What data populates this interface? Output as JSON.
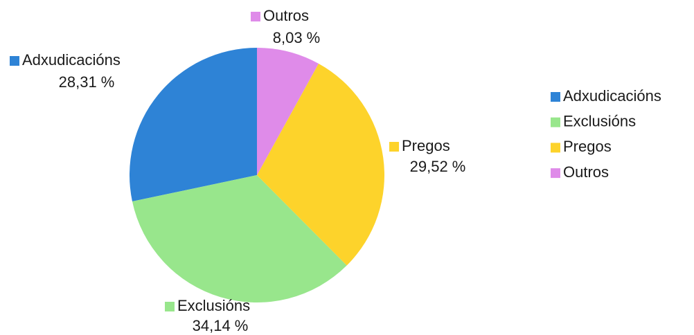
{
  "chart_data": {
    "type": "pie",
    "categories": [
      "Adxudicacións",
      "Exclusións",
      "Pregos",
      "Outros"
    ],
    "values": [
      28.31,
      34.14,
      29.52,
      8.03
    ],
    "value_labels": [
      "28,31 %",
      "34,14 %",
      "29,52 %",
      "8,03 %"
    ],
    "colors": [
      "#2e83d6",
      "#98e68c",
      "#fdd32b",
      "#df8be9"
    ],
    "legend": "right"
  }
}
